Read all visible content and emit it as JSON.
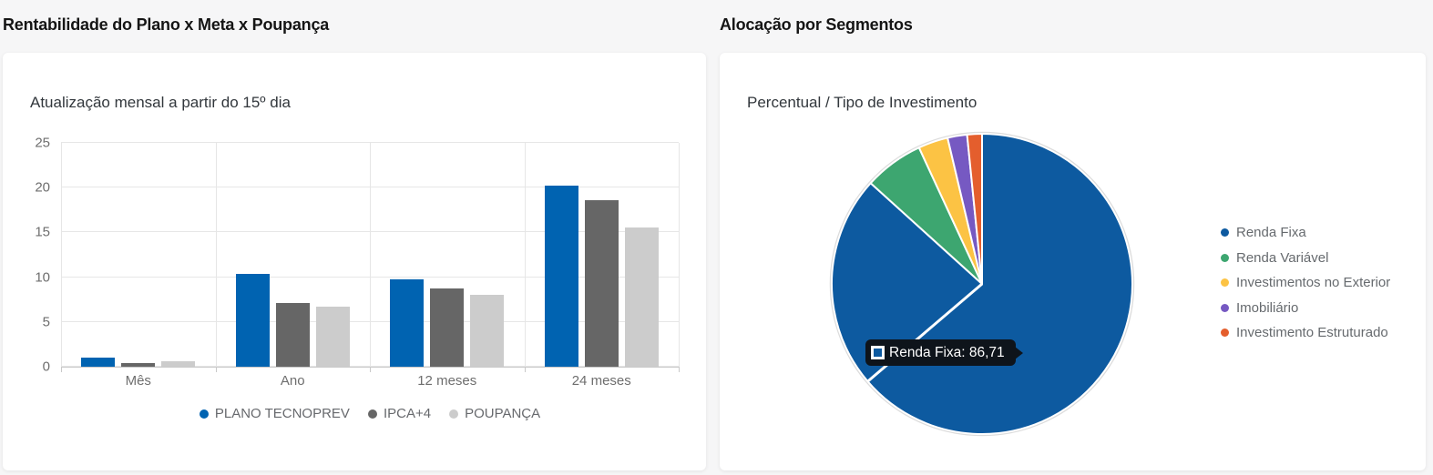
{
  "left_panel": {
    "title": "Rentabilidade do Plano x Meta x Poupança",
    "subtitle": "Atualização mensal a partir do 15º dia"
  },
  "right_panel": {
    "title": "Alocação por Segmentos",
    "subtitle": "Percentual / Tipo de Investimento",
    "tooltip": {
      "text": "Renda Fixa: 86,71",
      "swatch_color": "#0d5aa0"
    }
  },
  "chart_data": [
    {
      "type": "bar",
      "title": "Atualização mensal a partir do 15º dia",
      "categories": [
        "Mês",
        "Ano",
        "12 meses",
        "24 meses"
      ],
      "series": [
        {
          "name": "PLANO TECNOPREV",
          "color": "#0063b1",
          "values": [
            0.97,
            10.35,
            9.8,
            20.25
          ]
        },
        {
          "name": "IPCA+4",
          "color": "#666666",
          "values": [
            0.45,
            7.15,
            8.7,
            18.55
          ]
        },
        {
          "name": "POUPANÇA",
          "color": "#cccccc",
          "values": [
            0.62,
            6.7,
            8.0,
            15.6
          ]
        }
      ],
      "ylim": [
        0,
        25
      ],
      "yticks": [
        0,
        5,
        10,
        15,
        20,
        25
      ],
      "grid": true,
      "legend_position": "bottom"
    },
    {
      "type": "pie",
      "title": "Percentual / Tipo de Investimento",
      "labels": [
        "Renda Fixa",
        "Renda Variável",
        "Investimentos no Exterior",
        "Imobiliário",
        "Investimento Estruturado"
      ],
      "values": [
        86.71,
        6.4,
        3.2,
        2.1,
        1.59
      ],
      "colors": [
        "#0d5aa0",
        "#3da670",
        "#fcc344",
        "#7659c2",
        "#e45e2d"
      ],
      "start_angle_deg": 0,
      "direction": "clockwise",
      "notch_angle_deg": 229.5,
      "legend_position": "right",
      "tooltip_visible": "Renda Fixa: 86,71"
    }
  ]
}
